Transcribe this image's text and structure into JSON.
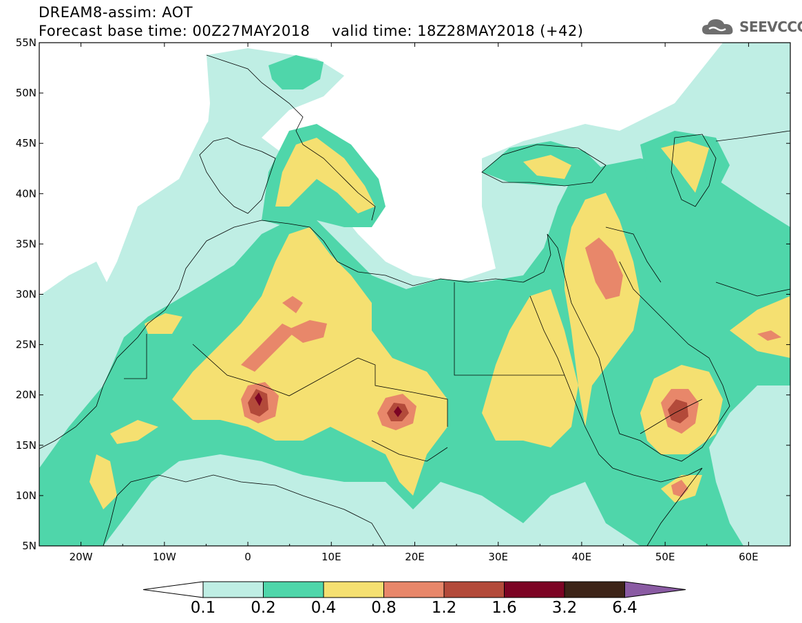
{
  "header": {
    "line1": "DREAM8-assim: AOT",
    "line2": "Forecast base time: 00Z27MAY2018",
    "line2b": "valid time: 18Z28MAY2018 (+42)"
  },
  "logo": {
    "text": "SEEVCCC",
    "icon": "cloud-icon"
  },
  "map": {
    "lat_labels": [
      "55N",
      "50N",
      "45N",
      "40N",
      "35N",
      "30N",
      "25N",
      "20N",
      "15N",
      "10N",
      "5N"
    ],
    "lon_labels": [
      "20W",
      "10W",
      "0",
      "10E",
      "20E",
      "30E",
      "40E",
      "50E",
      "60E"
    ],
    "lon_range": [
      -25,
      65
    ],
    "lat_range": [
      5,
      55
    ]
  },
  "colorbar": {
    "labels": [
      "0.1",
      "0.2",
      "0.4",
      "0.8",
      "1.2",
      "1.6",
      "3.2",
      "6.4"
    ],
    "colors": [
      "#ffffff",
      "#bfeee4",
      "#4fd6aa",
      "#f5e071",
      "#e8876a",
      "#b34a3a",
      "#7c0424",
      "#3d2418",
      "#8a5ba3"
    ]
  }
}
